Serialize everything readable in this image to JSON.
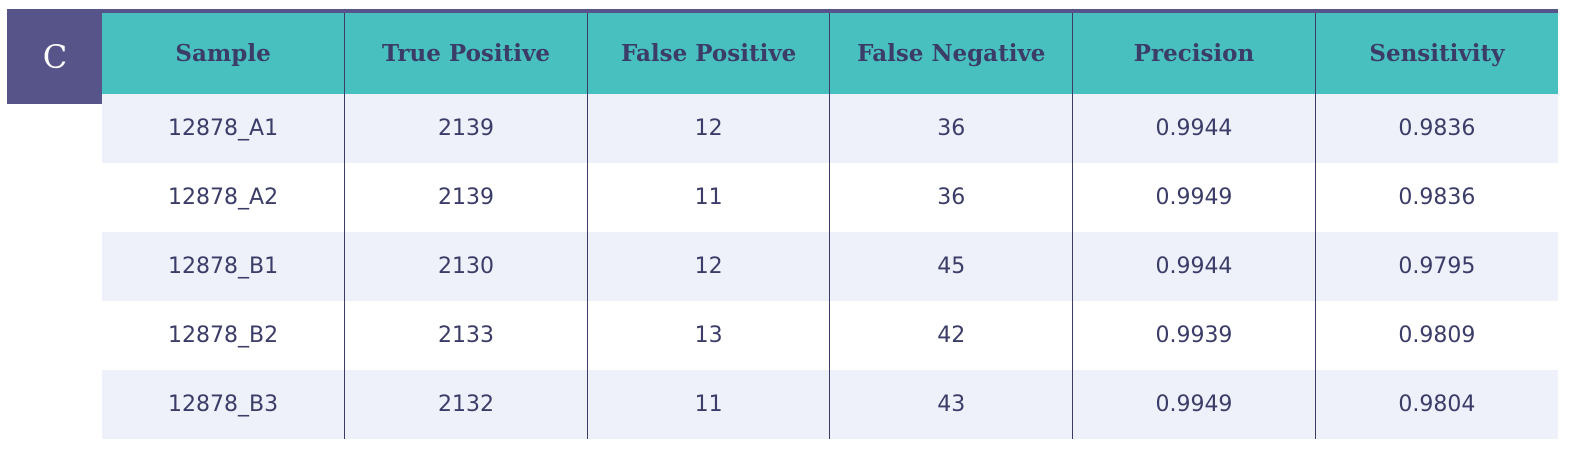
{
  "panel_label": "C",
  "table": {
    "headers": [
      "Sample",
      "True Positive",
      "False Positive",
      "False Negative",
      "Precision",
      "Sensitivity"
    ],
    "rows": [
      [
        "12878_A1",
        "2139",
        "12",
        "36",
        "0.9944",
        "0.9836"
      ],
      [
        "12878_A2",
        "2139",
        "11",
        "36",
        "0.9949",
        "0.9836"
      ],
      [
        "12878_B1",
        "2130",
        "12",
        "45",
        "0.9944",
        "0.9795"
      ],
      [
        "12878_B2",
        "2133",
        "13",
        "42",
        "0.9939",
        "0.9809"
      ],
      [
        "12878_B3",
        "2132",
        "11",
        "43",
        "0.9949",
        "0.9804"
      ]
    ]
  },
  "colors": {
    "header_bg": "#49c0c0",
    "label_bg": "#57548a",
    "text": "#3b3d68",
    "row_alt_bg": "#eef0fa"
  }
}
